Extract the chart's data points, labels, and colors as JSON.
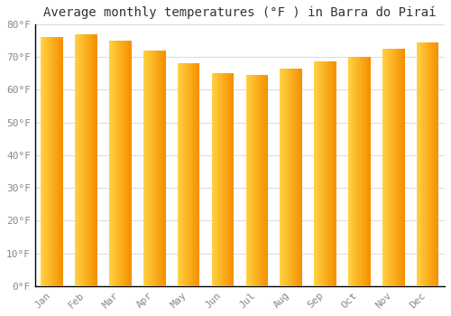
{
  "title": "Average monthly temperatures (°F ) in Barra do Piraí",
  "months": [
    "Jan",
    "Feb",
    "Mar",
    "Apr",
    "May",
    "Jun",
    "Jul",
    "Aug",
    "Sep",
    "Oct",
    "Nov",
    "Dec"
  ],
  "values": [
    76,
    77,
    75,
    72,
    68,
    65,
    64.5,
    66.5,
    68.5,
    70,
    72.5,
    74.5
  ],
  "bar_color_left": "#FFD040",
  "bar_color_right": "#F59000",
  "ylim": [
    0,
    80
  ],
  "yticks": [
    0,
    10,
    20,
    30,
    40,
    50,
    60,
    70,
    80
  ],
  "ytick_labels": [
    "0°F",
    "10°F",
    "20°F",
    "30°F",
    "40°F",
    "50°F",
    "60°F",
    "70°F",
    "80°F"
  ],
  "background_color": "#FFFFFF",
  "grid_color": "#DDDDDD",
  "tick_color": "#888888",
  "title_fontsize": 10,
  "tick_fontsize": 8,
  "font_family": "monospace",
  "bar_width": 0.65,
  "n_gradient_strips": 20
}
